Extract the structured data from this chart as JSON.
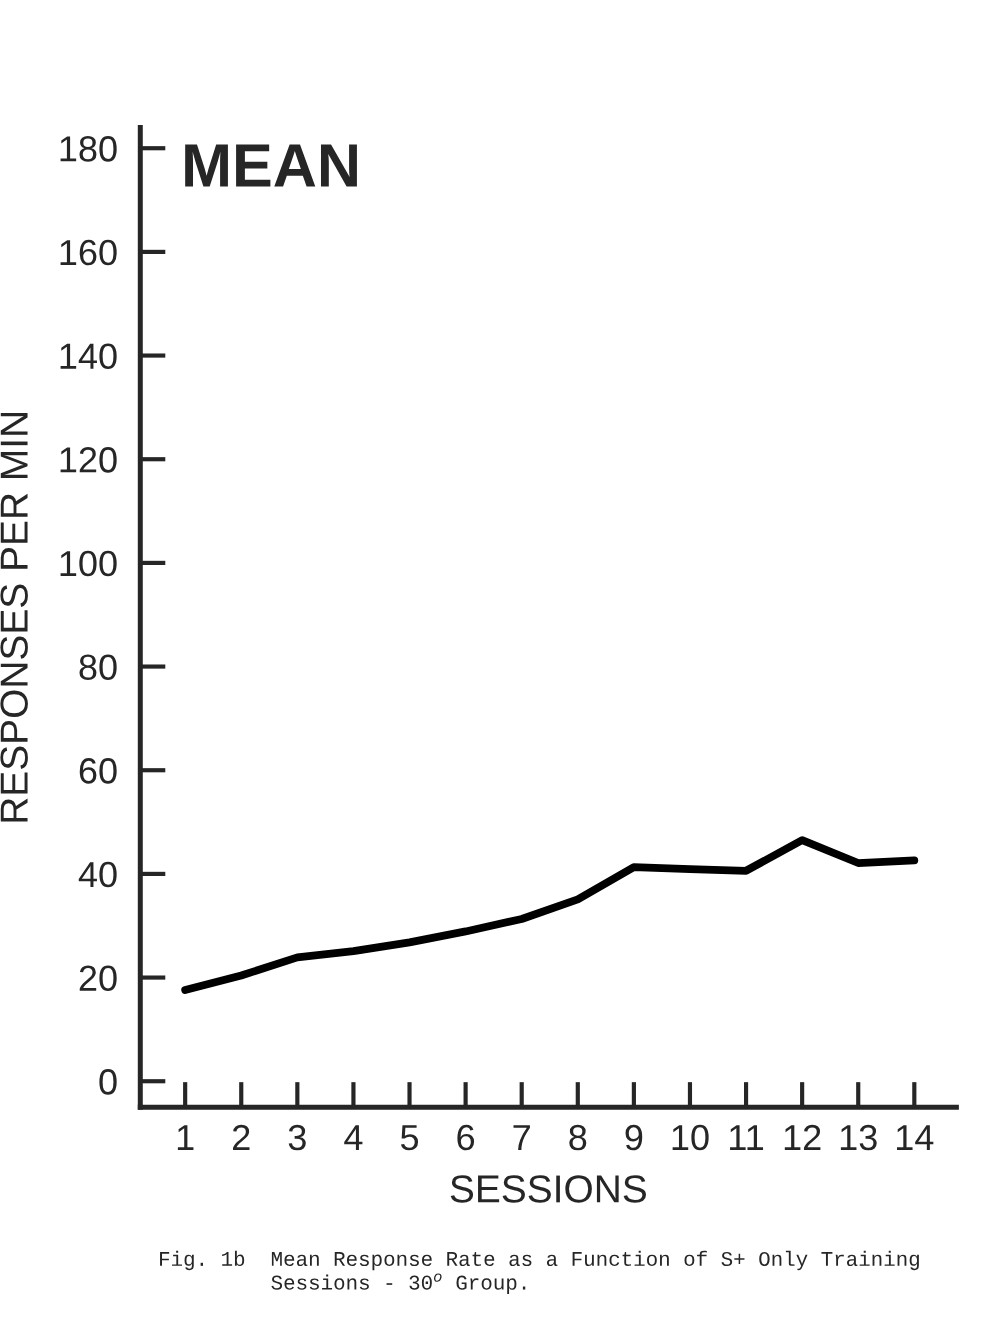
{
  "chart_data": {
    "type": "line",
    "title": "MEAN",
    "xlabel": "SESSIONS",
    "ylabel": "RESPONSES PER MIN",
    "x": [
      1,
      2,
      3,
      4,
      5,
      6,
      7,
      8,
      9,
      10,
      11,
      12,
      13,
      14
    ],
    "series": [
      {
        "color": "#000000",
        "values": [
          17.6,
          20.4,
          23.9,
          25.1,
          26.8,
          28.9,
          31.3,
          35.1,
          41.3,
          40.9,
          40.6,
          46.5,
          42.1,
          42.6
        ]
      }
    ],
    "xlim": [
      0.2,
      14.75
    ],
    "xticks": [
      1,
      2,
      3,
      4,
      5,
      6,
      7,
      8,
      9,
      10,
      11,
      12,
      13,
      14
    ],
    "ylim": [
      -5,
      184
    ],
    "yticks": [
      0,
      20,
      40,
      60,
      80,
      100,
      120,
      140,
      160,
      180
    ],
    "grid": false,
    "legend": false,
    "marker": "none",
    "line_style": "solid",
    "annotations": [
      "Fig. 1b  Mean Response Rate as a Function of S+ Only Training\n         Sessions - 30$^{o}$ Group."
    ]
  }
}
